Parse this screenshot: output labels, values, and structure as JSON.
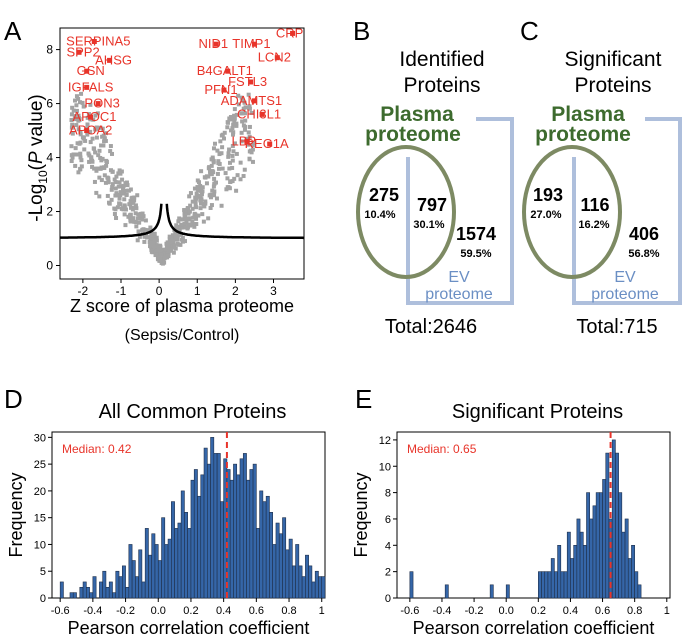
{
  "panels": {
    "A": "A",
    "B": "B",
    "C": "C",
    "D": "D",
    "E": "E"
  },
  "volcano": {
    "ylabel_prefix": "-Log",
    "ylabel_sub": "10",
    "ylabel_paren_open": "(",
    "ylabel_italic": "P",
    "ylabel_suffix": " value)",
    "xlabel": "Z score of plasma proteome",
    "xlabel2": "(Sepsis/Control)"
  },
  "venn_b": {
    "title_line1": "Identified",
    "title_line2": "Proteins",
    "plasma_line1": "Plasma",
    "plasma_line2": "proteome",
    "ev_line1": "EV",
    "ev_line2": "proteome",
    "left_count": "275",
    "left_pct": "10.4%",
    "mid_count": "797",
    "mid_pct": "30.1%",
    "right_count": "1574",
    "right_pct": "59.5%",
    "total": "Total:2646"
  },
  "venn_c": {
    "title_line1": "Significant",
    "title_line2": "Proteins",
    "plasma_line1": "Plasma",
    "plasma_line2": "proteome",
    "ev_line1": "EV",
    "ev_line2": "proteome",
    "left_count": "193",
    "left_pct": "27.0%",
    "mid_count": "116",
    "mid_pct": "16.2%",
    "right_count": "406",
    "right_pct": "56.8%",
    "total": "Total:715"
  },
  "colors": {
    "plasma": "#3d6b2e",
    "plasma_ellipse": "#7d8a63",
    "ev": "#6b8fc4",
    "ev_box": "#aebfdc",
    "bar": "#3566a8",
    "median": "#e8342a",
    "label_red": "#e8342a",
    "scatter_gray": "#a3a3a3"
  },
  "chart_data": [
    {
      "type": "scatter",
      "panel": "A",
      "title": "",
      "xlabel": "Z score of plasma proteome (Sepsis/Control)",
      "ylabel": "-Log10(P value)",
      "xlim": [
        -2.6,
        3.8
      ],
      "ylim": [
        -0.5,
        8.8
      ],
      "xticks": [
        -2,
        -1,
        0,
        1,
        2,
        3
      ],
      "yticks": [
        0,
        2,
        4,
        6,
        8
      ],
      "threshold_curve": "y = 1.0 + 0.09 / |x - 0.13| (approx.)",
      "labeled_points": [
        {
          "label": "SERPINA5",
          "x": -1.7,
          "y": 8.3
        },
        {
          "label": "AHSG",
          "x": -1.3,
          "y": 7.6
        },
        {
          "label": "SPP2",
          "x": -2.1,
          "y": 7.9
        },
        {
          "label": "GSN",
          "x": -1.9,
          "y": 7.2
        },
        {
          "label": "IGFALS",
          "x": -1.9,
          "y": 6.6
        },
        {
          "label": "PON3",
          "x": -1.6,
          "y": 6.0
        },
        {
          "label": "APOC1",
          "x": -1.8,
          "y": 5.5
        },
        {
          "label": "APOA2",
          "x": -1.9,
          "y": 5.0
        },
        {
          "label": "CRP",
          "x": 3.5,
          "y": 8.6
        },
        {
          "label": "TIMP1",
          "x": 2.5,
          "y": 8.2
        },
        {
          "label": "NID1",
          "x": 1.5,
          "y": 8.2
        },
        {
          "label": "LCN2",
          "x": 3.1,
          "y": 7.7
        },
        {
          "label": "B4GALT1",
          "x": 1.8,
          "y": 7.2
        },
        {
          "label": "FSTL3",
          "x": 2.4,
          "y": 6.8
        },
        {
          "label": "PFN1",
          "x": 1.7,
          "y": 6.5
        },
        {
          "label": "ADAMTS1",
          "x": 2.5,
          "y": 6.1
        },
        {
          "label": "CHI3L1",
          "x": 2.7,
          "y": 5.6
        },
        {
          "label": "LBP",
          "x": 2.3,
          "y": 4.6
        },
        {
          "label": "REG1A",
          "x": 2.9,
          "y": 4.5
        }
      ]
    },
    {
      "type": "bar",
      "panel": "D",
      "title": "All Common Proteins",
      "xlabel": "Pearson correlation coefficient",
      "ylabel": "Frequency",
      "xlim": [
        -0.65,
        1.02
      ],
      "ylim": [
        0,
        31
      ],
      "xticks": [
        -0.6,
        -0.4,
        -0.2,
        0.0,
        0.2,
        0.4,
        0.6,
        0.8,
        1
      ],
      "xtick_labels": [
        "-0.6",
        "-0.4",
        "-0.2",
        "0.0",
        "0.2",
        "0.4",
        "0.6",
        "0.8",
        "1"
      ],
      "yticks": [
        0,
        5,
        10,
        15,
        20,
        25,
        30
      ],
      "median_label": "Median: 0.42",
      "median": 0.42,
      "bin_start": -0.6,
      "bin_width": 0.02,
      "values": [
        3,
        0,
        0,
        1,
        1,
        0,
        2,
        3,
        2,
        1,
        4,
        0,
        3,
        5,
        2,
        3,
        1,
        5,
        4,
        6,
        2,
        10,
        7,
        4,
        9,
        3,
        13,
        8,
        12,
        10,
        7,
        15,
        10,
        11,
        18,
        13,
        14,
        20,
        16,
        13,
        22,
        24,
        19,
        23,
        28,
        25,
        30,
        27,
        27,
        18,
        26,
        24,
        22,
        25,
        23,
        26,
        27,
        22,
        24,
        25,
        13,
        20,
        18,
        19,
        16,
        10,
        14,
        12,
        15,
        9,
        11,
        6,
        10,
        6,
        4,
        8,
        6,
        3,
        5,
        4,
        4
      ]
    },
    {
      "type": "bar",
      "panel": "E",
      "title": "Significant Proteins",
      "xlabel": "Pearson correlation coefficient",
      "ylabel": "Freqeuncy",
      "xlim": [
        -0.68,
        1.02
      ],
      "ylim": [
        0,
        12.6
      ],
      "xticks": [
        -0.6,
        -0.4,
        -0.2,
        0.0,
        0.2,
        0.4,
        0.6,
        0.8,
        1
      ],
      "xtick_labels": [
        "-0.6",
        "-0.4",
        "-0.2",
        "0.0",
        "0.2",
        "0.4",
        "0.6",
        "0.8",
        "1"
      ],
      "yticks": [
        0,
        2,
        4,
        6,
        8,
        10,
        12
      ],
      "median_label": "Median: 0.65",
      "median": 0.65,
      "bin_start": -0.6,
      "bin_width": 0.02,
      "values": [
        2,
        0,
        0,
        0,
        0,
        0,
        0,
        0,
        0,
        0,
        0,
        1,
        0,
        0,
        0,
        0,
        0,
        0,
        0,
        0,
        0,
        0,
        0,
        0,
        0,
        1,
        0,
        0,
        0,
        0,
        1,
        0,
        0,
        0,
        0,
        0,
        0,
        0,
        0,
        0,
        2,
        2,
        2,
        2,
        3,
        2,
        4,
        2,
        2,
        5,
        3,
        4,
        6,
        5,
        4,
        8,
        6,
        7,
        8,
        8,
        9,
        11,
        6,
        12,
        11,
        8,
        5,
        6,
        3,
        4,
        2,
        1
      ]
    }
  ]
}
